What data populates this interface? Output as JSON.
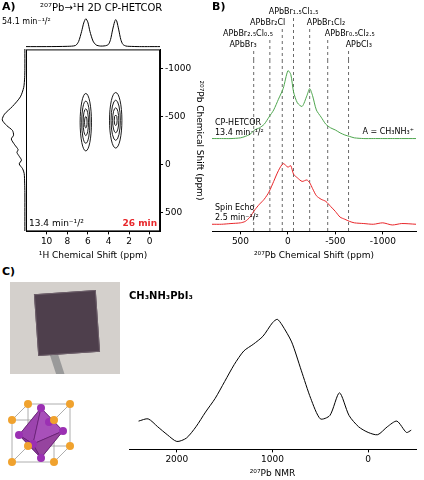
{
  "chart_data": [
    {
      "type": "line",
      "panel": "A)",
      "title": "²⁰⁷Pb→¹H 2D CP-HETCOR",
      "annotations": [
        {
          "text": "54.1 min⁻¹/²"
        }
      ],
      "x": [
        12,
        10,
        8,
        7.2,
        6.9,
        6.6,
        6.4,
        6.2,
        6.0,
        5.8,
        5.5,
        5.2,
        4.8,
        4.3,
        4.0,
        3.8,
        3.6,
        3.4,
        3.3,
        3.2,
        3.0,
        2.8,
        2.6,
        2.3,
        2,
        1,
        0,
        -1
      ],
      "values": [
        0,
        0,
        0.01,
        0.04,
        0.18,
        0.55,
        0.85,
        1.0,
        0.88,
        0.55,
        0.2,
        0.06,
        0.02,
        0.03,
        0.08,
        0.25,
        0.6,
        0.9,
        0.97,
        0.92,
        0.6,
        0.25,
        0.08,
        0.02,
        0.01,
        0,
        0,
        0
      ],
      "xlim": [
        12,
        -1
      ],
      "ylim": [
        -0.05,
        1.1
      ],
      "tick_labels": false,
      "color": "#000000"
    },
    {
      "type": "line",
      "orientation": "horizontal",
      "x": [
        -1200,
        -1000,
        -900,
        -800,
        -700,
        -600,
        -520,
        -460,
        -400,
        -350,
        -300,
        -260,
        -200,
        -150,
        -120,
        -80,
        -40,
        0,
        50,
        100,
        200,
        300,
        500,
        700
      ],
      "values": [
        0,
        0,
        0.01,
        0.05,
        0.2,
        0.55,
        0.9,
        1.0,
        0.8,
        0.55,
        0.5,
        0.6,
        0.45,
        0.3,
        0.35,
        0.25,
        0.15,
        0.25,
        0.1,
        0.03,
        0.01,
        0,
        0,
        0
      ],
      "xlim": [
        700,
        -1200
      ],
      "ylim": [
        1.1,
        -0.05
      ],
      "tick_labels": false,
      "color": "#000000"
    },
    {
      "type": "contour",
      "x_label": "¹H Chemical Shift (ppm)",
      "y_label": "²⁰⁷Pb Chemical Shift (ppm)",
      "xlim": [
        12,
        -1
      ],
      "xticks": [
        10,
        8,
        6,
        4,
        2,
        0
      ],
      "ylim": [
        700,
        -1200
      ],
      "yticks": [
        -1000,
        -500,
        0,
        500
      ],
      "peaks": [
        {
          "x": 6.2,
          "y": -440,
          "levels": [
            {
              "rx": 0.55,
              "ry": 300
            },
            {
              "rx": 0.4,
              "ry": 220
            },
            {
              "rx": 0.26,
              "ry": 140
            },
            {
              "rx": 0.12,
              "ry": 60
            }
          ]
        },
        {
          "x": 3.3,
          "y": -460,
          "levels": [
            {
              "rx": 0.6,
              "ry": 290
            },
            {
              "rx": 0.45,
              "ry": 210
            },
            {
              "rx": 0.3,
              "ry": 130
            },
            {
              "rx": 0.14,
              "ry": 55
            }
          ]
        }
      ],
      "annotations": [
        {
          "text": "13.4 min⁻¹/²"
        },
        {
          "text": "26 min",
          "color": "#e8262a"
        }
      ],
      "color": "#000000"
    },
    {
      "type": "line",
      "panel": "B)",
      "x_label": "²⁰⁷Pb Chemical Shift (ppm)",
      "x": [
        800,
        700,
        600,
        500,
        450,
        400,
        350,
        300,
        250,
        200,
        150,
        100,
        50,
        0,
        -30,
        -60,
        -100,
        -150,
        -200,
        -230,
        -260,
        -300,
        -350,
        -400,
        -450,
        -500,
        -550,
        -600,
        -650,
        -700,
        -800,
        -900,
        -1000,
        -1100,
        -1200,
        -1350
      ],
      "series": [
        {
          "name": "CP-HETCOR",
          "color": "#4fa64f",
          "values": [
            1.3,
            1.3,
            1.3,
            1.31,
            1.33,
            1.36,
            1.42,
            1.45,
            1.5,
            1.6,
            1.7,
            1.85,
            2.0,
            2.25,
            2.2,
            1.95,
            1.8,
            1.75,
            1.9,
            2.0,
            1.9,
            1.7,
            1.6,
            1.5,
            1.45,
            1.42,
            1.38,
            1.35,
            1.33,
            1.31,
            1.3,
            1.3,
            1.3,
            1.3,
            1.3,
            1.3
          ]
        },
        {
          "name": "Spin Echo",
          "color": "#e8262a",
          "values": [
            0.1,
            0.1,
            0.11,
            0.12,
            0.14,
            0.2,
            0.3,
            0.38,
            0.45,
            0.55,
            0.7,
            0.85,
            0.95,
            0.9,
            0.92,
            0.8,
            0.75,
            0.7,
            0.72,
            0.68,
            0.6,
            0.5,
            0.45,
            0.42,
            0.35,
            0.28,
            0.2,
            0.17,
            0.14,
            0.12,
            0.11,
            0.1,
            0.12,
            0.09,
            0.11,
            0.1
          ]
        }
      ],
      "references": [
        {
          "label": "APbBr₃",
          "value": 360,
          "line_style": "dashed"
        },
        {
          "label": "APbBr₂.₅Cl₀.₅",
          "value": 190,
          "line_style": "dashed"
        },
        {
          "label": "APbBr₂Cl",
          "value": 60,
          "line_style": "dashed"
        },
        {
          "label": "APbBr₁.₅Cl₁.₅",
          "value": -60,
          "line_style": "dashed"
        },
        {
          "label": "APbBr₁Cl₂",
          "value": -230,
          "line_style": "dashed"
        },
        {
          "label": "APbBr₀.₅Cl₂.₅",
          "value": -420,
          "line_style": "dashed"
        },
        {
          "label": "APbCl₃",
          "value": -640,
          "line_style": "dashed"
        }
      ],
      "annotations": [
        {
          "text": "13.4 min⁻¹/²"
        },
        {
          "text": "A = CH₃NH₃⁺"
        },
        {
          "text": "2.5 min⁻¹/²"
        }
      ],
      "xlim": [
        800,
        -1350
      ],
      "xticks": [
        500,
        0,
        -500,
        -1000
      ],
      "ylim": [
        0,
        2.4
      ],
      "tick_labels": "x"
    },
    {
      "type": "line",
      "panel": "C)",
      "title": "CH₃NH₃PbI₃",
      "x_label": "²⁰⁷Pb NMR",
      "x": [
        2400,
        2300,
        2200,
        2100,
        2000,
        1900,
        1800,
        1700,
        1600,
        1500,
        1400,
        1300,
        1200,
        1100,
        1000,
        950,
        900,
        800,
        700,
        600,
        500,
        400,
        300,
        200,
        100,
        0,
        -100,
        -200,
        -300,
        -400,
        -450
      ],
      "values": [
        0.1,
        0.12,
        0.05,
        -0.02,
        -0.08,
        -0.05,
        0.05,
        0.18,
        0.3,
        0.45,
        0.6,
        0.72,
        0.78,
        0.85,
        0.97,
        1.0,
        0.95,
        0.8,
        0.55,
        0.3,
        0.12,
        0.15,
        0.35,
        0.15,
        0.05,
        0.0,
        -0.02,
        0.05,
        0.1,
        0.0,
        0.02
      ],
      "xlim": [
        2500,
        -500
      ],
      "xticks": [
        2000,
        1000,
        0
      ],
      "ylim": [
        -0.15,
        1.1
      ],
      "tick_labels": "x",
      "color": "#000000"
    }
  ]
}
